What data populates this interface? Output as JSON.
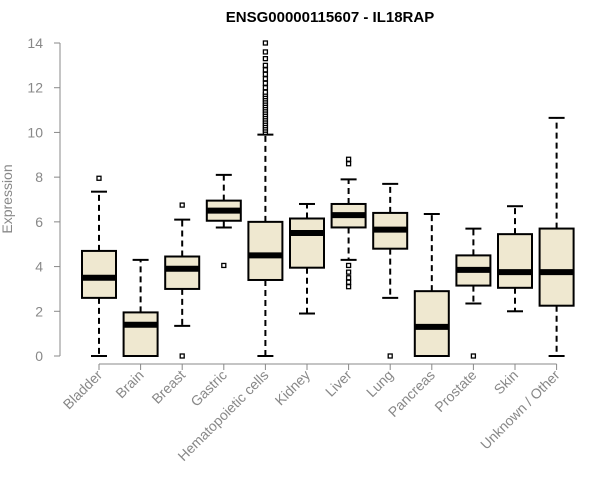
{
  "chart_data": {
    "type": "boxplot",
    "title": "ENSG00000115607 - IL18RAP",
    "xlabel": "",
    "ylabel": "Expression",
    "ylim": [
      0,
      14
    ],
    "yticks": [
      0,
      2,
      4,
      6,
      8,
      10,
      12,
      14
    ],
    "grid": false,
    "box_fill": "#efe8d0",
    "box_stroke": "#000000",
    "categories": [
      "Bladder",
      "Brain",
      "Breast",
      "Gastric",
      "Hematopoietic cells",
      "Kidney",
      "Liver",
      "Lung",
      "Pancreas",
      "Prostate",
      "Skin",
      "Unknown / Other"
    ],
    "boxes": [
      {
        "category": "Bladder",
        "whisker_low": 0,
        "q1": 2.6,
        "median": 3.5,
        "q3": 4.7,
        "whisker_high": 7.35,
        "outliers": [
          7.95
        ]
      },
      {
        "category": "Brain",
        "whisker_low": 0,
        "q1": 0,
        "median": 1.4,
        "q3": 1.95,
        "whisker_high": 4.3,
        "outliers": []
      },
      {
        "category": "Breast",
        "whisker_low": 1.35,
        "q1": 3.0,
        "median": 3.9,
        "q3": 4.45,
        "whisker_high": 6.1,
        "outliers": [
          6.75,
          0
        ]
      },
      {
        "category": "Gastric",
        "whisker_low": 5.75,
        "q1": 6.05,
        "median": 6.5,
        "q3": 6.95,
        "whisker_high": 8.1,
        "outliers": [
          4.05
        ]
      },
      {
        "category": "Hematopoietic cells",
        "whisker_low": 0,
        "q1": 3.4,
        "median": 4.5,
        "q3": 6.0,
        "whisker_high": 9.9,
        "outliers": [
          10.0,
          10.1,
          10.2,
          10.3,
          10.4,
          10.5,
          10.6,
          10.7,
          10.8,
          10.9,
          11.0,
          11.1,
          11.2,
          11.3,
          11.4,
          11.5,
          11.6,
          11.7,
          11.8,
          12.0,
          12.2,
          12.4,
          12.6,
          12.8,
          13.0,
          13.3,
          13.6,
          14.0
        ]
      },
      {
        "category": "Kidney",
        "whisker_low": 1.9,
        "q1": 3.95,
        "median": 5.5,
        "q3": 6.15,
        "whisker_high": 6.8,
        "outliers": []
      },
      {
        "category": "Liver",
        "whisker_low": 4.3,
        "q1": 5.75,
        "median": 6.3,
        "q3": 6.8,
        "whisker_high": 7.9,
        "outliers": [
          8.6,
          8.8,
          4.05,
          3.75,
          3.5,
          3.3,
          3.1
        ]
      },
      {
        "category": "Lung",
        "whisker_low": 2.6,
        "q1": 4.8,
        "median": 5.65,
        "q3": 6.4,
        "whisker_high": 7.7,
        "outliers": [
          0
        ]
      },
      {
        "category": "Pancreas",
        "whisker_low": 0,
        "q1": 0,
        "median": 1.3,
        "q3": 2.9,
        "whisker_high": 6.35,
        "outliers": []
      },
      {
        "category": "Prostate",
        "whisker_low": 2.35,
        "q1": 3.15,
        "median": 3.85,
        "q3": 4.5,
        "whisker_high": 5.7,
        "outliers": [
          0
        ]
      },
      {
        "category": "Skin",
        "whisker_low": 2.0,
        "q1": 3.05,
        "median": 3.75,
        "q3": 5.45,
        "whisker_high": 6.7,
        "outliers": []
      },
      {
        "category": "Unknown / Other",
        "whisker_low": 0,
        "q1": 2.25,
        "median": 3.75,
        "q3": 5.7,
        "whisker_high": 10.65,
        "outliers": []
      }
    ]
  }
}
